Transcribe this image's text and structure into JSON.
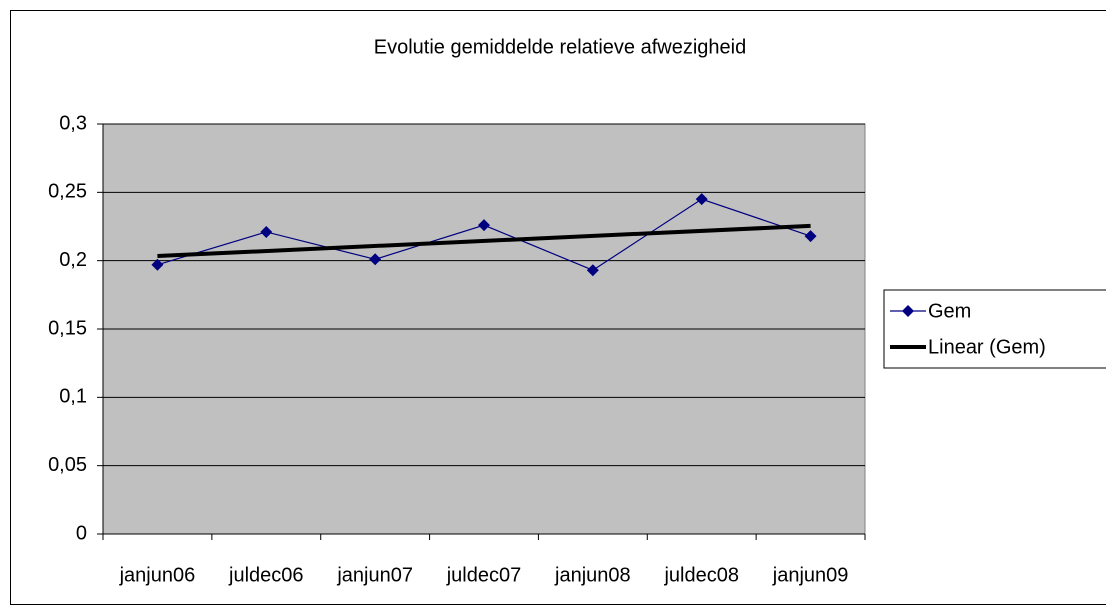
{
  "chart_data": {
    "type": "line",
    "title": "Evolutie gemiddelde relatieve afwezigheid",
    "categories": [
      "janjun06",
      "juldec06",
      "janjun07",
      "juldec07",
      "janjun08",
      "juldec08",
      "janjun09"
    ],
    "series": [
      {
        "name": "Gem",
        "color": "#000080",
        "values": [
          0.197,
          0.221,
          0.201,
          0.226,
          0.193,
          0.245,
          0.218
        ]
      }
    ],
    "trendline": {
      "name": "Linear (Gem)",
      "color": "#000000"
    },
    "ylim": [
      0,
      0.3
    ],
    "yticks": [
      0,
      {
        "value": 0.05,
        "label": "0,05"
      },
      {
        "value": 0.1,
        "label": "0,1"
      },
      {
        "value": 0.15,
        "label": "0,15"
      },
      {
        "value": 0.2,
        "label": "0,2"
      },
      {
        "value": 0.25,
        "label": "0,25"
      },
      {
        "value": 0.3,
        "label": "0,3"
      }
    ],
    "grid": true,
    "legend": "right",
    "plot_background": "#c0c0c0"
  }
}
